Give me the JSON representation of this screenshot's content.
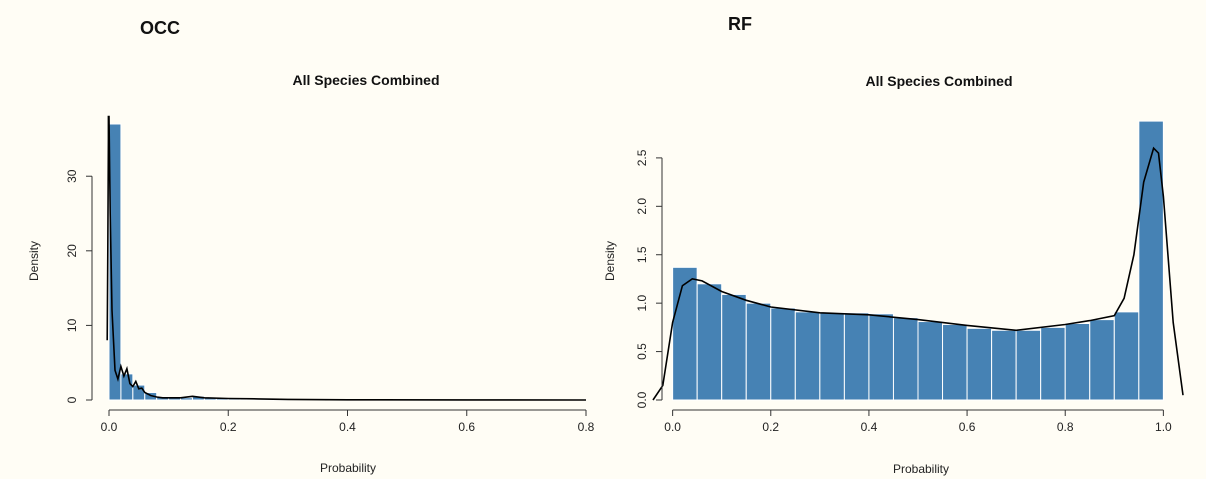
{
  "panels": {
    "left_label": "OCC",
    "right_label": "RF"
  },
  "colors": {
    "bar_fill": "#4682b4",
    "bar_stroke": "#ffffff",
    "density_line": "#000000",
    "background": "#fffdf5"
  },
  "chart_data": [
    {
      "type": "bar",
      "subtype": "histogram-with-density",
      "title": "All Species Combined",
      "xlabel": "Probability",
      "ylabel": "Density",
      "xlim": [
        0,
        0.8
      ],
      "ylim": [
        0,
        37
      ],
      "xticks": [
        "0.0",
        "0.2",
        "0.4",
        "0.6",
        "0.8"
      ],
      "yticks": [
        "0",
        "10",
        "20",
        "30"
      ],
      "xtick_values": [
        0,
        0.2,
        0.4,
        0.6,
        0.8
      ],
      "ytick_values": [
        0,
        10,
        20,
        30
      ],
      "bins": [
        {
          "x0": 0.0,
          "x1": 0.02,
          "y": 37.0
        },
        {
          "x0": 0.02,
          "x1": 0.04,
          "y": 3.5
        },
        {
          "x0": 0.04,
          "x1": 0.06,
          "y": 2.0
        },
        {
          "x0": 0.06,
          "x1": 0.08,
          "y": 1.0
        },
        {
          "x0": 0.08,
          "x1": 0.1,
          "y": 0.4
        },
        {
          "x0": 0.1,
          "x1": 0.12,
          "y": 0.3
        },
        {
          "x0": 0.12,
          "x1": 0.14,
          "y": 0.3
        },
        {
          "x0": 0.14,
          "x1": 0.16,
          "y": 0.5
        },
        {
          "x0": 0.16,
          "x1": 0.18,
          "y": 0.3
        },
        {
          "x0": 0.18,
          "x1": 0.2,
          "y": 0.2
        },
        {
          "x0": 0.2,
          "x1": 0.22,
          "y": 0.2
        },
        {
          "x0": 0.22,
          "x1": 0.24,
          "y": 0.2
        },
        {
          "x0": 0.24,
          "x1": 0.26,
          "y": 0.15
        },
        {
          "x0": 0.26,
          "x1": 0.28,
          "y": 0.15
        },
        {
          "x0": 0.28,
          "x1": 0.3,
          "y": 0.1
        }
      ],
      "density": {
        "x": [
          -0.003,
          -0.002,
          -0.001,
          -0.001,
          0.0,
          0.002,
          0.005,
          0.01,
          0.015,
          0.02,
          0.025,
          0.03,
          0.035,
          0.04,
          0.045,
          0.05,
          0.055,
          0.06,
          0.07,
          0.08,
          0.09,
          0.1,
          0.12,
          0.14,
          0.16,
          0.2,
          0.25,
          0.3,
          0.4,
          0.6,
          0.8
        ],
        "y": [
          8,
          20,
          35,
          38,
          38,
          25,
          12,
          4,
          2.8,
          4.5,
          3.2,
          4.2,
          2.2,
          1.8,
          2.5,
          1.5,
          1.6,
          1.0,
          0.6,
          0.4,
          0.3,
          0.3,
          0.3,
          0.5,
          0.3,
          0.2,
          0.15,
          0.08,
          0.03,
          0.01,
          0.0
        ]
      }
    },
    {
      "type": "bar",
      "subtype": "histogram-with-density",
      "title": "All Species Combined",
      "xlabel": "Probability",
      "ylabel": "Density",
      "xlim": [
        -0.04,
        1.04
      ],
      "ylim": [
        0,
        2.85
      ],
      "xticks": [
        "0.0",
        "0.2",
        "0.4",
        "0.6",
        "0.8",
        "1.0"
      ],
      "yticks": [
        "0.0",
        "0.5",
        "1.0",
        "1.5",
        "2.0",
        "2.5"
      ],
      "xtick_values": [
        0,
        0.2,
        0.4,
        0.6,
        0.8,
        1.0
      ],
      "ytick_values": [
        0,
        0.5,
        1.0,
        1.5,
        2.0,
        2.5
      ],
      "bins": [
        {
          "x0": 0.0,
          "x1": 0.05,
          "y": 1.37
        },
        {
          "x0": 0.05,
          "x1": 0.1,
          "y": 1.2
        },
        {
          "x0": 0.1,
          "x1": 0.15,
          "y": 1.09
        },
        {
          "x0": 0.15,
          "x1": 0.2,
          "y": 1.0
        },
        {
          "x0": 0.2,
          "x1": 0.25,
          "y": 0.95
        },
        {
          "x0": 0.25,
          "x1": 0.3,
          "y": 0.91
        },
        {
          "x0": 0.3,
          "x1": 0.35,
          "y": 0.9
        },
        {
          "x0": 0.35,
          "x1": 0.4,
          "y": 0.9
        },
        {
          "x0": 0.4,
          "x1": 0.45,
          "y": 0.89
        },
        {
          "x0": 0.45,
          "x1": 0.5,
          "y": 0.85
        },
        {
          "x0": 0.5,
          "x1": 0.55,
          "y": 0.81
        },
        {
          "x0": 0.55,
          "x1": 0.6,
          "y": 0.78
        },
        {
          "x0": 0.6,
          "x1": 0.65,
          "y": 0.74
        },
        {
          "x0": 0.65,
          "x1": 0.7,
          "y": 0.72
        },
        {
          "x0": 0.7,
          "x1": 0.75,
          "y": 0.72
        },
        {
          "x0": 0.75,
          "x1": 0.8,
          "y": 0.75
        },
        {
          "x0": 0.8,
          "x1": 0.85,
          "y": 0.79
        },
        {
          "x0": 0.85,
          "x1": 0.9,
          "y": 0.83
        },
        {
          "x0": 0.9,
          "x1": 0.95,
          "y": 0.91
        },
        {
          "x0": 0.95,
          "x1": 1.0,
          "y": 2.88
        }
      ],
      "density": {
        "x": [
          -0.04,
          -0.02,
          0.0,
          0.02,
          0.04,
          0.06,
          0.1,
          0.15,
          0.2,
          0.3,
          0.4,
          0.5,
          0.6,
          0.7,
          0.8,
          0.85,
          0.9,
          0.92,
          0.94,
          0.96,
          0.98,
          0.99,
          1.0,
          1.02,
          1.04
        ],
        "y": [
          0.0,
          0.15,
          0.8,
          1.18,
          1.25,
          1.23,
          1.12,
          1.03,
          0.96,
          0.9,
          0.88,
          0.83,
          0.77,
          0.72,
          0.78,
          0.82,
          0.87,
          1.05,
          1.5,
          2.25,
          2.6,
          2.55,
          2.1,
          0.8,
          0.05
        ]
      }
    }
  ]
}
